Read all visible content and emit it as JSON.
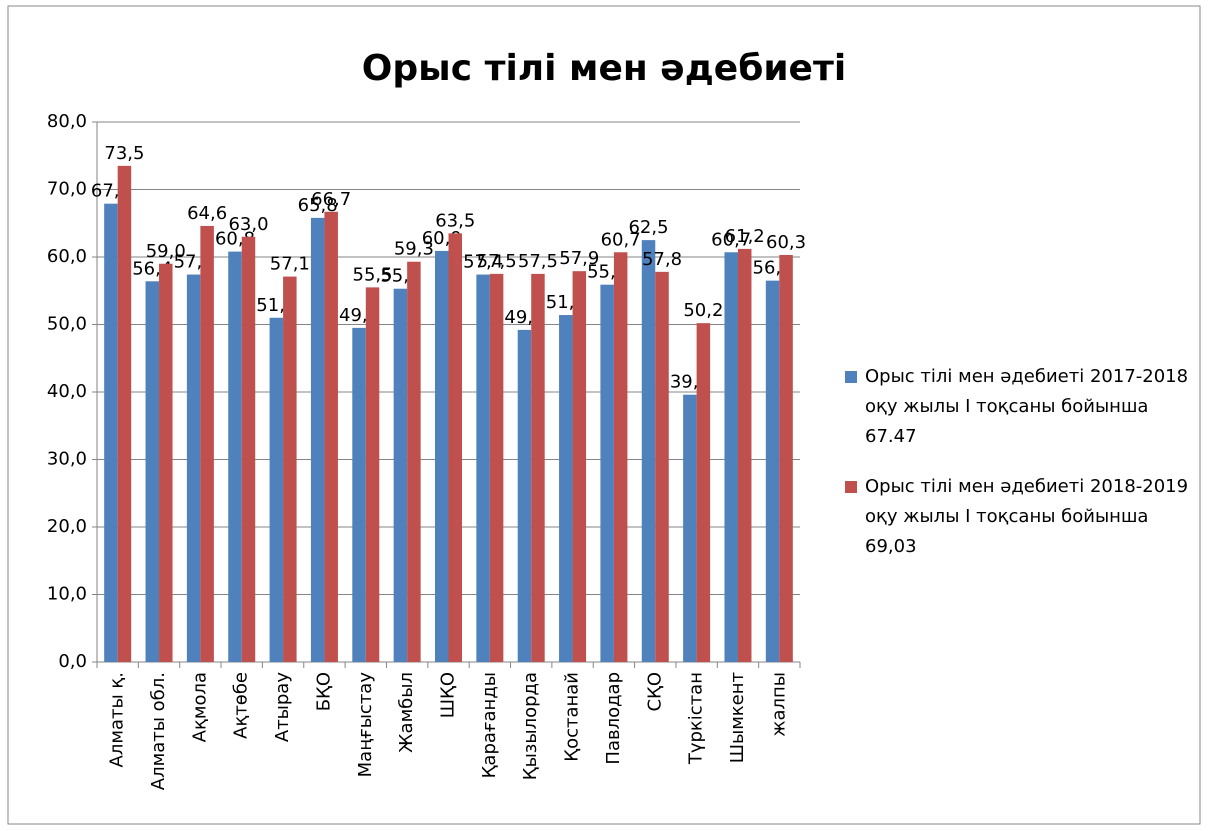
{
  "chart_data": {
    "type": "bar",
    "title": "Орыс тілі мен әдебиеті",
    "categories": [
      "Алматы қ.",
      "Алматы обл.",
      "Ақмола",
      "Ақтөбе",
      "Атырау",
      "БҚО",
      "Маңғыстау",
      "Жамбыл",
      "ШҚО",
      "Қарағанды",
      "Қызылорда",
      "Қостанай",
      "Павлодар",
      "СҚО",
      "Түркістан",
      "Шымкент",
      "жалпы"
    ],
    "series": [
      {
        "name": "Орыс тілі мен әдебиеті 2017-2018 оқу жылы  І тоқсаны бойынша 67.47",
        "color": "#4f81bd",
        "values": [
          67.9,
          56.4,
          57.4,
          60.8,
          51.0,
          65.8,
          49.5,
          55.3,
          60.9,
          57.4,
          49.2,
          51.4,
          55.9,
          62.5,
          39.6,
          60.7,
          56.5
        ],
        "value_labels": [
          "67,9",
          "56,4",
          "57,4",
          "60,8",
          "51,0",
          "65,8",
          "49,5",
          "55,3",
          "60,9",
          "57,4",
          "49,2",
          "51,4",
          "55,9",
          "62,5",
          "39,6",
          "60,7",
          "56,5"
        ]
      },
      {
        "name": "Орыс тілі мен әдебиеті 2018-2019 оқу жылы  І тоқсаны бойынша 69,03",
        "color": "#c0504d",
        "values": [
          73.5,
          59.0,
          64.6,
          63.0,
          57.1,
          66.7,
          55.5,
          59.3,
          63.5,
          57.5,
          57.5,
          57.9,
          60.7,
          57.8,
          50.2,
          61.2,
          60.3
        ],
        "value_labels": [
          "73,5",
          "59,0",
          "64,6",
          "63,0",
          "57,1",
          "66,7",
          "55,5",
          "59,3",
          "63,5",
          "57,5",
          "57,5",
          "57,9",
          "60,7",
          "57,8",
          "50,2",
          "61,2",
          "60,3"
        ]
      }
    ],
    "ylim": [
      0,
      80
    ],
    "yticks": [
      {
        "value": 0,
        "label": "0,0"
      },
      {
        "value": 10,
        "label": "10,0"
      },
      {
        "value": 20,
        "label": "20,0"
      },
      {
        "value": 30,
        "label": "30,0"
      },
      {
        "value": 40,
        "label": "40,0"
      },
      {
        "value": 50,
        "label": "50,0"
      },
      {
        "value": 60,
        "label": "60,0"
      },
      {
        "value": 70,
        "label": "70,0"
      },
      {
        "value": 80,
        "label": "80,0"
      }
    ],
    "grid": true,
    "legend": "right"
  }
}
